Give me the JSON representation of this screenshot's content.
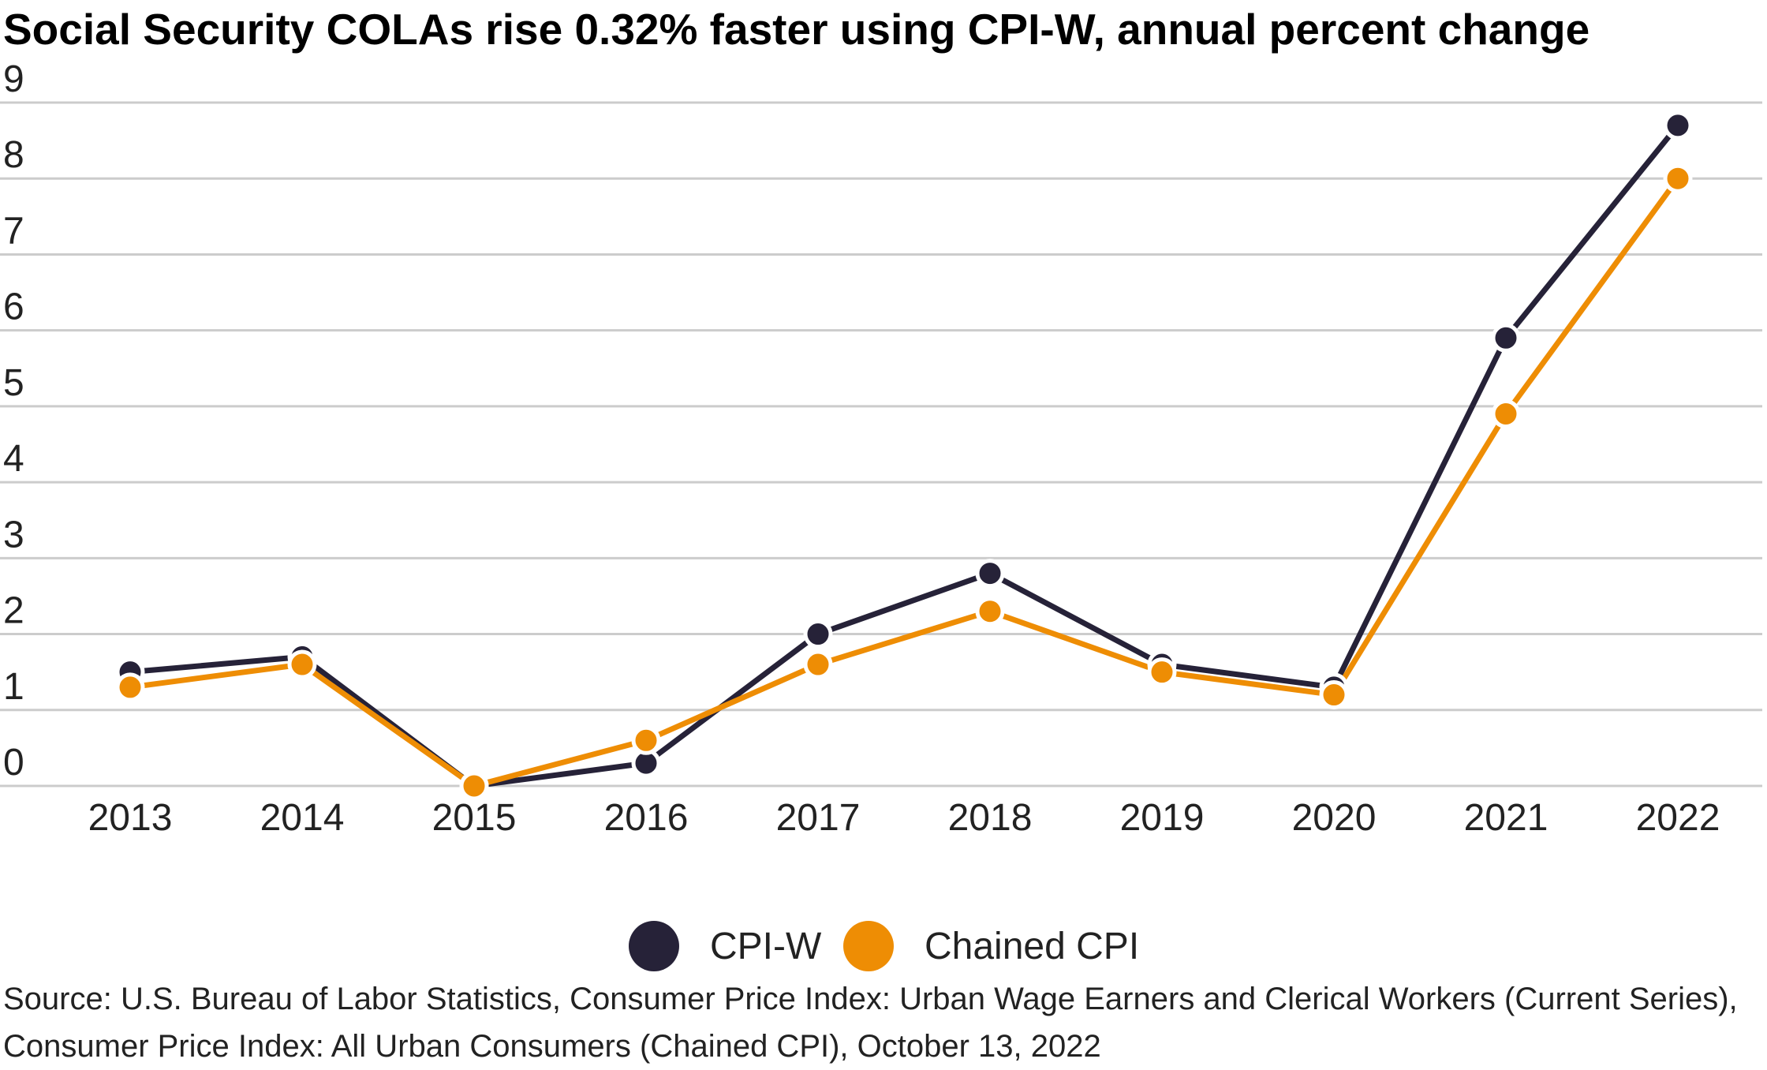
{
  "chart_data": {
    "type": "line",
    "title": "Social Security COLAs rise 0.32% faster using CPI-W, annual percent change",
    "categories": [
      "2013",
      "2014",
      "2015",
      "2016",
      "2017",
      "2018",
      "2019",
      "2020",
      "2021",
      "2022"
    ],
    "series": [
      {
        "name": "CPI-W",
        "color": "#262238",
        "values": [
          1.5,
          1.7,
          0.0,
          0.3,
          2.0,
          2.8,
          1.6,
          1.3,
          5.9,
          8.7
        ]
      },
      {
        "name": "Chained CPI",
        "color": "#EE8D04",
        "values": [
          1.3,
          1.6,
          0.0,
          0.6,
          1.6,
          2.3,
          1.5,
          1.2,
          4.9,
          8.0
        ]
      }
    ],
    "y_ticks": [
      "0",
      "1",
      "2",
      "3",
      "4",
      "5",
      "6",
      "7",
      "8",
      "9"
    ],
    "ylim": [
      0,
      9
    ],
    "xlabel": "",
    "ylabel": "",
    "grid": true,
    "legend_position": "bottom-center",
    "source": "Source: U.S. Bureau of Labor Statistics, Consumer Price Index: Urban Wage Earners and Clerical Workers (Current Series), Consumer Price Index: All Urban Consumers (Chained CPI), October 13, 2022"
  }
}
